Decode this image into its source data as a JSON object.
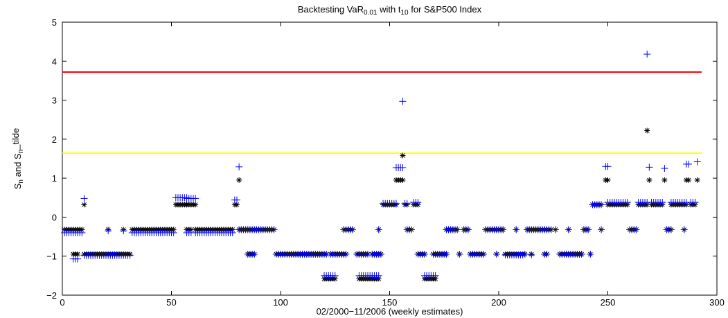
{
  "chart_data": {
    "type": "scatter",
    "title_parts": [
      {
        "text": "Backtesting VaR",
        "shift": "base"
      },
      {
        "text": "0.01",
        "shift": "sub"
      },
      {
        "text": " with t",
        "shift": "base"
      },
      {
        "text": "10",
        "shift": "sub"
      },
      {
        "text": " for S&P500 Index",
        "shift": "base"
      }
    ],
    "xlabel": "02/2000−11/2006 (weekly estimates)",
    "ylabel_parts": [
      {
        "text": "S",
        "shift": "base"
      },
      {
        "text": "n",
        "shift": "sub"
      },
      {
        "text": " and S",
        "shift": "base"
      },
      {
        "text": "n",
        "shift": "sub"
      },
      {
        "text": "_tilde",
        "shift": "sup"
      }
    ],
    "xlim": [
      0,
      300
    ],
    "ylim": [
      -2,
      5
    ],
    "xticks": [
      0,
      50,
      100,
      150,
      200,
      250,
      300
    ],
    "yticks": [
      -2,
      -1,
      0,
      1,
      2,
      3,
      4,
      5
    ],
    "grid": false,
    "thresholds": [
      {
        "value": 3.72,
        "color": "#ff0000",
        "x_range": [
          0,
          293
        ]
      },
      {
        "value": 1.64,
        "color": "#ffff00",
        "x_range": [
          0,
          293
        ]
      }
    ],
    "series_colors": {
      "star": "#000000",
      "plus": "#0000ff"
    },
    "segments": [
      {
        "x": [
          1,
          9
        ],
        "star": -0.32,
        "plus": -0.4
      },
      {
        "x": [
          5,
          7
        ],
        "star": -0.95,
        "plus": -1.07
      },
      {
        "x": [
          10,
          10
        ],
        "star": 0.32,
        "plus": 0.48
      },
      {
        "x": [
          10,
          31
        ],
        "star": -0.95,
        "plus": -0.98
      },
      {
        "x": [
          21,
          21
        ],
        "star": -0.32,
        "plus": -0.35
      },
      {
        "x": [
          28,
          28
        ],
        "star": -0.32,
        "plus": -0.35
      },
      {
        "x": [
          32,
          51
        ],
        "star": -0.32,
        "plus": -0.4
      },
      {
        "x": [
          52,
          57
        ],
        "star": 0.32,
        "plus": 0.5
      },
      {
        "x": [
          57,
          61
        ],
        "star": 0.32,
        "plus": 0.48
      },
      {
        "x": [
          57,
          59
        ],
        "star": -0.32,
        "plus": -0.4
      },
      {
        "x": [
          61,
          78
        ],
        "star": -0.32,
        "plus": -0.4
      },
      {
        "x": [
          79,
          80
        ],
        "star": 0.32,
        "plus": 0.44
      },
      {
        "x": [
          81,
          81
        ],
        "star": 0.95,
        "plus": 1.29
      },
      {
        "x": [
          81,
          97
        ],
        "star": -0.32,
        "plus": -0.32
      },
      {
        "x": [
          85,
          88
        ],
        "star": -0.95,
        "plus": -0.95
      },
      {
        "x": [
          98,
          121
        ],
        "star": -0.95,
        "plus": -0.95
      },
      {
        "x": [
          120,
          125
        ],
        "star": -1.58,
        "plus": -1.5
      },
      {
        "x": [
          123,
          130
        ],
        "star": -0.95,
        "plus": -0.95
      },
      {
        "x": [
          129,
          133
        ],
        "star": -0.32,
        "plus": -0.32
      },
      {
        "x": [
          135,
          140
        ],
        "star": -0.95,
        "plus": -0.95
      },
      {
        "x": [
          136,
          145
        ],
        "star": -1.58,
        "plus": -1.5
      },
      {
        "x": [
          142,
          146
        ],
        "star": -0.95,
        "plus": -0.95
      },
      {
        "x": [
          145,
          145
        ],
        "star": -0.32,
        "plus": -0.32
      },
      {
        "x": [
          147,
          153
        ],
        "star": 0.32,
        "plus": 0.35
      },
      {
        "x": [
          153,
          156
        ],
        "star": 0.95,
        "plus": 1.27
      },
      {
        "x": [
          156,
          156
        ],
        "star": 1.58,
        "plus": 2.97
      },
      {
        "x": [
          157,
          158
        ],
        "star": 0.32,
        "plus": 0.35
      },
      {
        "x": [
          158,
          160
        ],
        "star": -0.32,
        "plus": -0.32
      },
      {
        "x": [
          161,
          163
        ],
        "star": 0.32,
        "plus": 0.38
      },
      {
        "x": [
          163,
          166
        ],
        "star": -0.95,
        "plus": -0.95
      },
      {
        "x": [
          166,
          171
        ],
        "star": -1.58,
        "plus": -1.5
      },
      {
        "x": [
          170,
          176
        ],
        "star": -0.95,
        "plus": -0.95
      },
      {
        "x": [
          176,
          181
        ],
        "star": -0.32,
        "plus": -0.32
      },
      {
        "x": [
          182,
          182
        ],
        "star": -0.95,
        "plus": -0.95
      },
      {
        "x": [
          184,
          186
        ],
        "star": -0.32,
        "plus": -0.32
      },
      {
        "x": [
          187,
          193
        ],
        "star": -0.95,
        "plus": -0.95
      },
      {
        "x": [
          194,
          202
        ],
        "star": -0.32,
        "plus": -0.32
      },
      {
        "x": [
          199,
          199
        ],
        "star": -0.95,
        "plus": -0.95
      },
      {
        "x": [
          203,
          211
        ],
        "star": -0.95,
        "plus": -0.97
      },
      {
        "x": [
          208,
          208
        ],
        "star": -0.32,
        "plus": -0.32
      },
      {
        "x": [
          212,
          212
        ],
        "star": -0.95,
        "plus": -0.95
      },
      {
        "x": [
          213,
          224
        ],
        "star": -0.32,
        "plus": -0.32
      },
      {
        "x": [
          215,
          215
        ],
        "star": -0.95,
        "plus": -0.97
      },
      {
        "x": [
          221,
          222
        ],
        "star": -0.95,
        "plus": -0.95
      },
      {
        "x": [
          226,
          226
        ],
        "star": -0.32,
        "plus": -0.32
      },
      {
        "x": [
          228,
          238
        ],
        "star": -0.95,
        "plus": -0.95
      },
      {
        "x": [
          232,
          232
        ],
        "star": -0.32,
        "plus": -0.32
      },
      {
        "x": [
          239,
          241
        ],
        "star": -0.32,
        "plus": -0.32
      },
      {
        "x": [
          242,
          242
        ],
        "star": -0.95,
        "plus": -0.95
      },
      {
        "x": [
          243,
          247
        ],
        "star": 0.32,
        "plus": 0.32
      },
      {
        "x": [
          247,
          247
        ],
        "star": -0.32,
        "plus": -0.32
      },
      {
        "x": [
          249,
          250
        ],
        "star": 0.95,
        "plus": 1.3
      },
      {
        "x": [
          250,
          259
        ],
        "star": 0.32,
        "plus": 0.38
      },
      {
        "x": [
          260,
          263
        ],
        "star": -0.32,
        "plus": -0.32
      },
      {
        "x": [
          264,
          268
        ],
        "star": 0.32,
        "plus": 0.38
      },
      {
        "x": [
          268,
          268
        ],
        "star": 2.22,
        "plus": 4.18
      },
      {
        "x": [
          269,
          269
        ],
        "star": 0.95,
        "plus": 1.28
      },
      {
        "x": [
          270,
          275
        ],
        "star": 0.32,
        "plus": 0.38
      },
      {
        "x": [
          276,
          276
        ],
        "star": 0.95,
        "plus": 1.25
      },
      {
        "x": [
          277,
          279
        ],
        "star": -0.32,
        "plus": -0.32
      },
      {
        "x": [
          279,
          286
        ],
        "star": 0.32,
        "plus": 0.38
      },
      {
        "x": [
          285,
          285
        ],
        "star": -0.32,
        "plus": -0.32
      },
      {
        "x": [
          286,
          287
        ],
        "star": 0.95,
        "plus": 1.36
      },
      {
        "x": [
          288,
          290
        ],
        "star": 0.32,
        "plus": 0.38
      },
      {
        "x": [
          291,
          291
        ],
        "star": 0.95,
        "plus": 1.42
      }
    ]
  }
}
